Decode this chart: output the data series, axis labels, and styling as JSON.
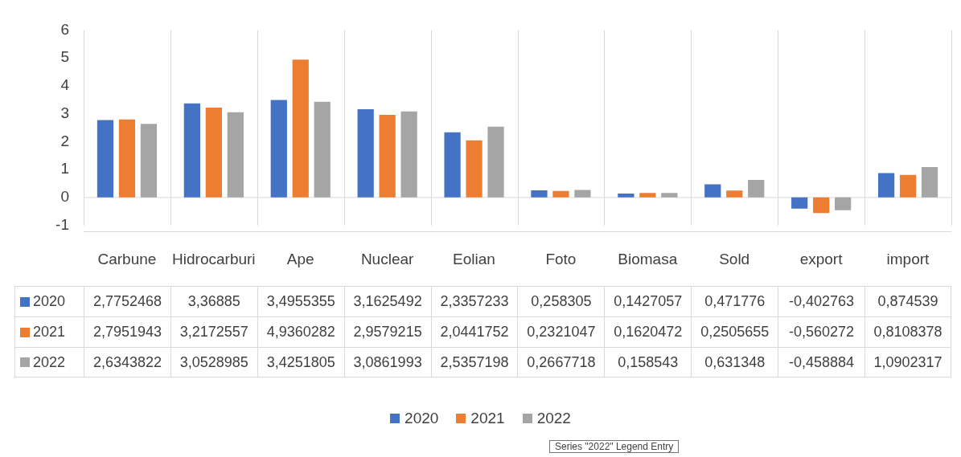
{
  "chart_data": {
    "type": "bar",
    "categories": [
      "Carbune",
      "Hidrocarburi",
      "Ape",
      "Nuclear",
      "Eolian",
      "Foto",
      "Biomasa",
      "Sold",
      "export",
      "import"
    ],
    "series": [
      {
        "name": "2020",
        "color": "#4472c4",
        "values": [
          2.7752468,
          3.36885,
          3.4955355,
          3.1625492,
          2.3357233,
          0.258305,
          0.1427057,
          0.471776,
          -0.402763,
          0.874539
        ],
        "value_labels": [
          "2,7752468",
          "3,36885",
          "3,4955355",
          "3,1625492",
          "2,3357233",
          "0,258305",
          "0,1427057",
          "0,471776",
          "-0,402763",
          "0,874539"
        ]
      },
      {
        "name": "2021",
        "color": "#ed7d31",
        "values": [
          2.7951943,
          3.2172557,
          4.9360282,
          2.9579215,
          2.0441752,
          0.2321047,
          0.1620472,
          0.2505655,
          -0.560272,
          0.8108378
        ],
        "value_labels": [
          "2,7951943",
          "3,2172557",
          "4,9360282",
          "2,9579215",
          "2,0441752",
          "0,2321047",
          "0,1620472",
          "0,2505655",
          "-0,560272",
          "0,8108378"
        ]
      },
      {
        "name": "2022",
        "color": "#a5a5a5",
        "values": [
          2.6343822,
          3.0528985,
          3.4251805,
          3.0861993,
          2.5357198,
          0.2667718,
          0.158543,
          0.631348,
          -0.458884,
          1.0902317
        ],
        "value_labels": [
          "2,6343822",
          "3,0528985",
          "3,4251805",
          "3,0861993",
          "2,5357198",
          "0,2667718",
          "0,158543",
          "0,631348",
          "-0,458884",
          "1,0902317"
        ]
      }
    ],
    "ref_lines": [
      {
        "axis": "y",
        "value": 0,
        "color": "#d9d9d9"
      }
    ],
    "ylim": [
      -1,
      6
    ],
    "yticks": [
      -1,
      0,
      1,
      2,
      3,
      4,
      5,
      6
    ],
    "grid": false,
    "legend": "bottom",
    "annotations": [
      "Series \"2022\" Legend Entry"
    ]
  }
}
